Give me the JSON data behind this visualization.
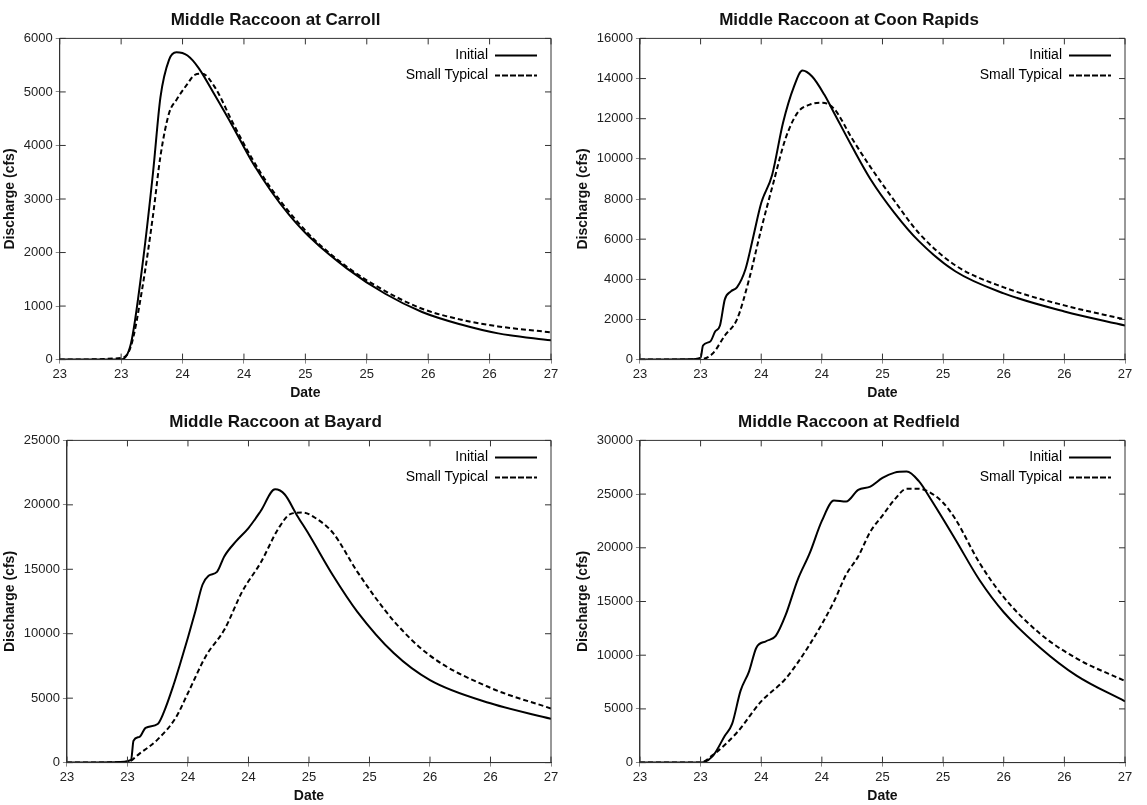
{
  "chart_data": [
    {
      "type": "line",
      "title": "Middle Raccoon at Carroll",
      "xlabel": "Date",
      "ylabel": "Discharge (cfs)",
      "xlim": [
        23,
        27
      ],
      "xticks": [
        23,
        {
          "value": 23.5,
          "label": "23"
        },
        24,
        {
          "value": 24.5,
          "label": "24"
        },
        25,
        {
          "value": 25.5,
          "label": "25"
        },
        26,
        {
          "value": 26.5,
          "label": "26"
        },
        27
      ],
      "ylim": [
        0,
        6000
      ],
      "yticks": [
        0,
        1000,
        2000,
        3000,
        4000,
        5000,
        6000
      ],
      "grid": false,
      "legend": "top right",
      "marker": "none",
      "series": [
        {
          "name": "Initial",
          "color": "#000000",
          "line_style": "solid",
          "x": [
            23,
            23.39,
            23.5,
            23.58,
            23.67,
            23.76,
            23.82,
            23.89,
            23.95,
            24.04,
            24.13,
            24.26,
            24.41,
            24.56,
            24.72,
            24.87,
            25.03,
            25.34,
            25.65,
            25.95,
            26.26,
            26.57,
            27
          ],
          "values": [
            0,
            0,
            0,
            300,
            1700,
            3500,
            4900,
            5600,
            5740,
            5680,
            5450,
            4950,
            4350,
            3720,
            3150,
            2700,
            2300,
            1700,
            1230,
            890,
            660,
            490,
            360
          ]
        },
        {
          "name": "Small Typical",
          "color": "#000000",
          "line_style": "dashed",
          "x": [
            23,
            23.5,
            23.58,
            23.67,
            23.76,
            23.82,
            23.89,
            23.95,
            24.04,
            24.1,
            24.16,
            24.26,
            24.41,
            24.56,
            24.72,
            25.03,
            25.34,
            25.65,
            25.95,
            26.26,
            26.57,
            27
          ],
          "values": [
            0,
            30,
            250,
            1300,
            2700,
            3800,
            4600,
            4850,
            5150,
            5320,
            5340,
            5100,
            4420,
            3780,
            3200,
            2340,
            1730,
            1280,
            950,
            750,
            620,
            510
          ]
        }
      ]
    },
    {
      "type": "line",
      "title": "Middle Raccoon at Coon Rapids",
      "xlabel": "Date",
      "ylabel": "Discharge (cfs)",
      "xlim": [
        23,
        27
      ],
      "xticks": [
        23,
        {
          "value": 23.5,
          "label": "23"
        },
        24,
        {
          "value": 24.5,
          "label": "24"
        },
        25,
        {
          "value": 25.5,
          "label": "25"
        },
        26,
        {
          "value": 26.5,
          "label": "26"
        },
        27
      ],
      "ylim": [
        0,
        16000
      ],
      "yticks": [
        0,
        2000,
        4000,
        6000,
        8000,
        10000,
        12000,
        14000,
        16000
      ],
      "grid": false,
      "legend": "top right",
      "marker": "none",
      "series": [
        {
          "name": "Initial",
          "color": "#000000",
          "line_style": "solid",
          "x": [
            23,
            23.4,
            23.5,
            23.52,
            23.58,
            23.62,
            23.66,
            23.7,
            23.75,
            23.8,
            23.87,
            23.93,
            24,
            24.09,
            24.18,
            24.27,
            24.34,
            24.42,
            24.52,
            24.6,
            24.75,
            24.9,
            25.1,
            25.3,
            25.6,
            26,
            26.5,
            27
          ],
          "values": [
            0,
            20,
            100,
            700,
            900,
            1400,
            1700,
            3000,
            3400,
            3600,
            4500,
            6000,
            7800,
            9200,
            11800,
            13600,
            14400,
            14100,
            13200,
            12300,
            10600,
            9000,
            7300,
            5900,
            4400,
            3300,
            2400,
            1700
          ]
        },
        {
          "name": "Small Typical",
          "color": "#000000",
          "line_style": "dashed",
          "x": [
            23,
            23.5,
            23.6,
            23.7,
            23.8,
            23.9,
            24,
            24.1,
            24.2,
            24.3,
            24.4,
            24.5,
            24.6,
            24.75,
            24.9,
            25.1,
            25.3,
            25.6,
            26,
            26.5,
            27
          ],
          "values": [
            0,
            20,
            300,
            1200,
            2000,
            4000,
            6500,
            8800,
            11000,
            12300,
            12700,
            12800,
            12500,
            11000,
            9600,
            7900,
            6300,
            4700,
            3600,
            2700,
            2000
          ]
        }
      ]
    },
    {
      "type": "line",
      "title": "Middle Raccoon at Bayard",
      "xlabel": "Date",
      "ylabel": "Discharge (cfs)",
      "xlim": [
        23,
        27
      ],
      "xticks": [
        23,
        {
          "value": 23.5,
          "label": "23"
        },
        24,
        {
          "value": 24.5,
          "label": "24"
        },
        25,
        {
          "value": 25.5,
          "label": "25"
        },
        26,
        {
          "value": 26.5,
          "label": "26"
        },
        27
      ],
      "ylim": [
        0,
        25000
      ],
      "yticks": [
        0,
        5000,
        10000,
        15000,
        20000,
        25000
      ],
      "grid": false,
      "legend": "top right",
      "marker": "none",
      "series": [
        {
          "name": "Initial",
          "color": "#000000",
          "line_style": "solid",
          "x": [
            23,
            23.4,
            23.53,
            23.55,
            23.6,
            23.65,
            23.75,
            23.8,
            23.88,
            23.93,
            24,
            24.06,
            24.12,
            24.17,
            24.24,
            24.3,
            24.4,
            24.5,
            24.6,
            24.72,
            24.8,
            24.9,
            25,
            25.2,
            25.4,
            25.7,
            26,
            26.5,
            27
          ],
          "values": [
            0,
            20,
            200,
            1700,
            2000,
            2700,
            3000,
            3900,
            6000,
            7500,
            9700,
            11700,
            13800,
            14500,
            14800,
            16000,
            17200,
            18200,
            19500,
            21200,
            20800,
            19200,
            17700,
            14500,
            11700,
            8500,
            6400,
            4600,
            3400
          ]
        },
        {
          "name": "Small Typical",
          "color": "#000000",
          "line_style": "dashed",
          "x": [
            23,
            23.5,
            23.6,
            23.75,
            23.9,
            24,
            24.15,
            24.3,
            24.45,
            24.6,
            24.75,
            24.85,
            24.95,
            25.05,
            25.2,
            25.4,
            25.7,
            26,
            26.5,
            27
          ],
          "values": [
            0,
            50,
            700,
            1800,
            3500,
            5400,
            8300,
            10300,
            13300,
            15500,
            18200,
            19300,
            19400,
            19000,
            17800,
            14800,
            11000,
            8300,
            5800,
            4200
          ]
        }
      ]
    },
    {
      "type": "line",
      "title": "Middle Raccoon at Redfield",
      "xlabel": "Date",
      "ylabel": "Discharge (cfs)",
      "xlim": [
        23,
        27
      ],
      "xticks": [
        23,
        {
          "value": 23.5,
          "label": "23"
        },
        24,
        {
          "value": 24.5,
          "label": "24"
        },
        25,
        {
          "value": 25.5,
          "label": "25"
        },
        26,
        {
          "value": 26.5,
          "label": "26"
        },
        27
      ],
      "ylim": [
        0,
        30000
      ],
      "yticks": [
        0,
        5000,
        10000,
        15000,
        20000,
        25000,
        30000
      ],
      "grid": false,
      "legend": "top right",
      "marker": "none",
      "series": [
        {
          "name": "Initial",
          "color": "#000000",
          "line_style": "solid",
          "x": [
            23,
            23.5,
            23.6,
            23.7,
            23.76,
            23.83,
            23.9,
            23.96,
            24.04,
            24.12,
            24.2,
            24.3,
            24.4,
            24.5,
            24.6,
            24.7,
            24.8,
            24.9,
            25,
            25.1,
            25.2,
            25.3,
            25.4,
            25.6,
            25.8,
            26,
            26.3,
            26.6,
            27
          ],
          "values": [
            0,
            0,
            600,
            2500,
            3600,
            6700,
            8500,
            10700,
            11300,
            11800,
            13700,
            17000,
            19500,
            22500,
            24400,
            24300,
            25400,
            25700,
            26500,
            27000,
            27100,
            26200,
            24500,
            20800,
            17000,
            14000,
            10700,
            8100,
            5700
          ]
        },
        {
          "name": "Small Typical",
          "color": "#000000",
          "line_style": "dashed",
          "x": [
            23,
            23.5,
            23.6,
            23.8,
            24,
            24.2,
            24.4,
            24.6,
            24.7,
            24.8,
            24.9,
            25,
            25.1,
            25.2,
            25.3,
            25.4,
            25.5,
            25.6,
            25.8,
            26,
            26.3,
            26.6,
            27
          ],
          "values": [
            0,
            0,
            700,
            2800,
            5700,
            7800,
            11000,
            15000,
            17500,
            19200,
            21500,
            23000,
            24500,
            25500,
            25500,
            25100,
            24200,
            22700,
            18600,
            15400,
            12000,
            9700,
            7600
          ]
        }
      ]
    }
  ]
}
